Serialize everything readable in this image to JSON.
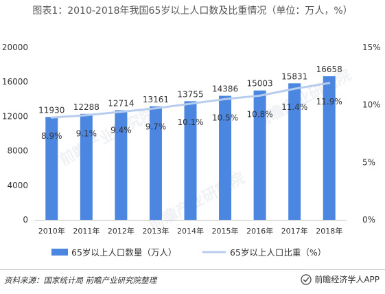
{
  "title": "图表1：2010-2018年我国65岁以上人口数及比重情况（单位：万人，%）",
  "source": "资料来源：国家统计局 前瞻产业研究院整理",
  "brand": "前瞻经济学人APP",
  "watermark": "前瞻产业研究院",
  "colors": {
    "bar": "#4b86e0",
    "line": "#b7cdee",
    "axis": "#bfbfbf",
    "text": "#333333"
  },
  "chart_data": {
    "type": "bar",
    "categories": [
      "2010年",
      "2011年",
      "2012年",
      "2013年",
      "2014年",
      "2015年",
      "2016年",
      "2017年",
      "2018年"
    ],
    "series": [
      {
        "name": "65岁以上人口数量（万人）",
        "type": "bar",
        "axis": "left",
        "values": [
          11930,
          12288,
          12714,
          13161,
          13755,
          14386,
          15003,
          15831,
          16658
        ],
        "labels": [
          "11930",
          "12288",
          "12714",
          "13161",
          "13755",
          "14386",
          "15003",
          "15831",
          "16658"
        ]
      },
      {
        "name": "65岁以上人口比重（%）",
        "type": "line",
        "axis": "right",
        "values": [
          8.9,
          9.1,
          9.4,
          9.7,
          10.1,
          10.5,
          10.8,
          11.4,
          11.9
        ],
        "labels": [
          "8.9%",
          "9.1%",
          "9.4%",
          "9.7%",
          "10.1%",
          "10.5%",
          "10.8%",
          "11.4%",
          "11.9%"
        ]
      }
    ],
    "ylim_left": [
      0,
      20000
    ],
    "yticks_left": [
      "0",
      "4000",
      "8000",
      "12000",
      "16000",
      "20000"
    ],
    "ytick_values_left": [
      0,
      4000,
      8000,
      12000,
      16000,
      20000
    ],
    "ylim_right": [
      0,
      15
    ],
    "yticks_right": [
      "0%",
      "5%",
      "10%",
      "15%"
    ],
    "ytick_values_right": [
      0,
      5,
      10,
      15
    ],
    "legend_position": "bottom",
    "grid": false
  }
}
